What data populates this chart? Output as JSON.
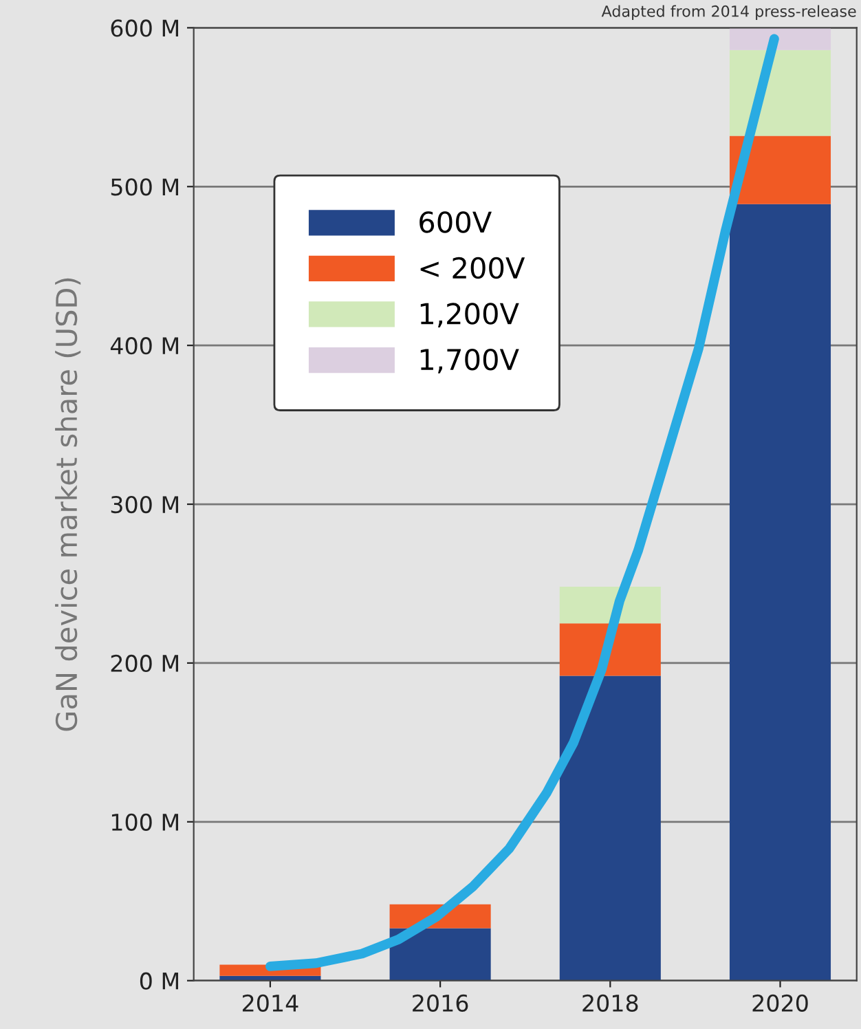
{
  "chart_data": {
    "type": "bar",
    "stacked": true,
    "ylabel": "GaN device market share (USD)",
    "x": [
      2014,
      2016,
      2018,
      2020
    ],
    "xlim": [
      2013.1,
      2020.9
    ],
    "xticks": [
      2014,
      2016,
      2018,
      2020
    ],
    "ylim": [
      0,
      600
    ],
    "yticks": [
      {
        "value": 0,
        "label": "0 M"
      },
      {
        "value": 100,
        "label": "100 M"
      },
      {
        "value": 200,
        "label": "200 M"
      },
      {
        "value": 300,
        "label": "300 M"
      },
      {
        "value": 400,
        "label": "400 M"
      },
      {
        "value": 500,
        "label": "500 M"
      },
      {
        "value": 600,
        "label": "600 M"
      }
    ],
    "grid": "y",
    "legend": "top left",
    "annotations": [
      "Adapted from 2014 press-release"
    ],
    "series": [
      {
        "name": "600V",
        "color": "#244689",
        "values": [
          3,
          33,
          192,
          489
        ]
      },
      {
        "name": "< 200V",
        "color": "#f15a24",
        "values": [
          7,
          15,
          33,
          43
        ]
      },
      {
        "name": "1,200V",
        "color": "#d1e9b9",
        "values": [
          null,
          null,
          23,
          54
        ]
      },
      {
        "name": "1,700V",
        "color": "#dccfe0",
        "values": [
          null,
          null,
          null,
          14
        ]
      },
      {
        "type": "line",
        "color": "#29abe2",
        "x": [
          2014.0,
          2014.54,
          2015.08,
          2015.51,
          2015.95,
          2016.38,
          2016.81,
          2017.25,
          2017.57,
          2017.9,
          2018.11,
          2018.33,
          2019.04,
          2019.36,
          2019.93
        ],
        "values": [
          9,
          11,
          17,
          26,
          40,
          59,
          83,
          118,
          150,
          196,
          239,
          271,
          398,
          473,
          593
        ]
      }
    ]
  }
}
